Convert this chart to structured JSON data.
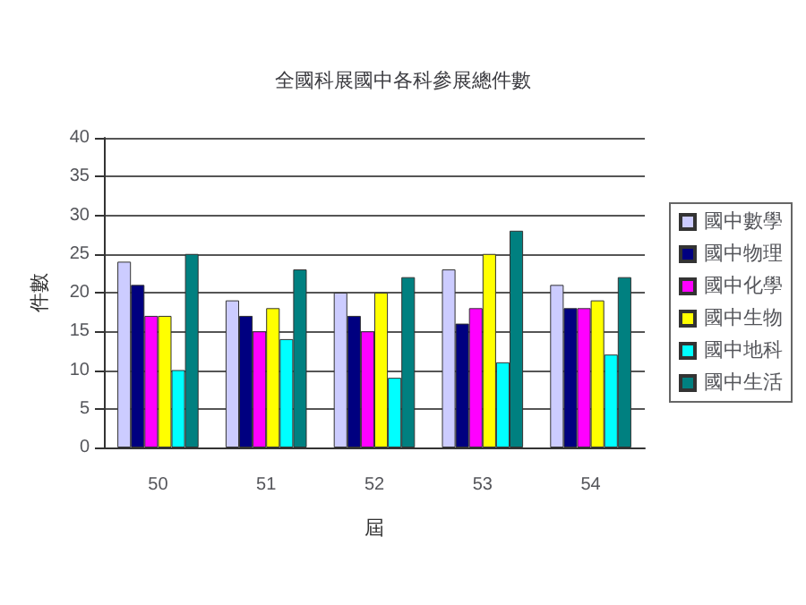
{
  "chart_data": {
    "type": "bar",
    "title": "全國科展國中各科參展總件數",
    "xlabel": "屆",
    "ylabel": "件數",
    "categories": [
      "50",
      "51",
      "52",
      "53",
      "54"
    ],
    "series": [
      {
        "name": "國中數學",
        "color": "#ccccff",
        "values": [
          24,
          19,
          20,
          23,
          21
        ]
      },
      {
        "name": "國中物理",
        "color": "#000080",
        "values": [
          21,
          17,
          17,
          16,
          18
        ]
      },
      {
        "name": "國中化學",
        "color": "#ff00ff",
        "values": [
          17,
          15,
          15,
          18,
          18
        ]
      },
      {
        "name": "國中生物",
        "color": "#ffff00",
        "values": [
          17,
          18,
          20,
          25,
          19
        ]
      },
      {
        "name": "國中地科",
        "color": "#00ffff",
        "values": [
          10,
          14,
          9,
          11,
          12
        ]
      },
      {
        "name": "國中生活",
        "color": "#008080",
        "values": [
          25,
          23,
          22,
          28,
          22
        ]
      }
    ],
    "ylim": [
      0,
      40
    ],
    "yticks": [
      0,
      5,
      10,
      15,
      20,
      25,
      30,
      35,
      40
    ],
    "grid": "y",
    "legend": "right"
  }
}
